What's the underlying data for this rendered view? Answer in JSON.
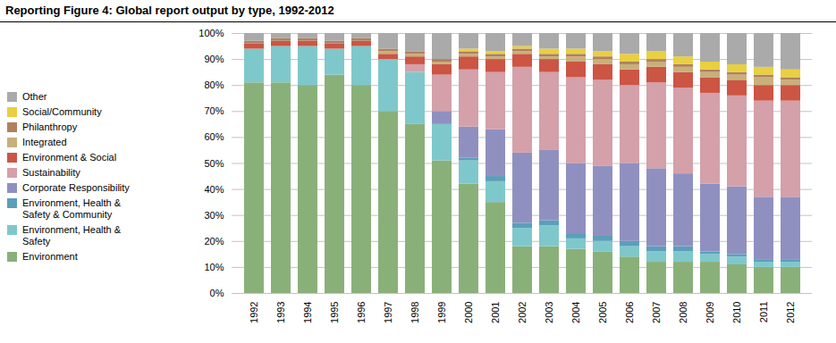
{
  "chart_data": {
    "type": "bar",
    "stacked": true,
    "title": "Reporting Figure 4: Global report output by type, 1992-2012",
    "categories": [
      "1992",
      "1993",
      "1994",
      "1995",
      "1996",
      "1997",
      "1998",
      "1999",
      "2000",
      "2001",
      "2002",
      "2003",
      "2004",
      "2005",
      "2006",
      "2007",
      "2008",
      "2009",
      "2010",
      "2011",
      "2012"
    ],
    "series": [
      {
        "name": "Environment",
        "color": "#8ab07a",
        "values": [
          81,
          81,
          80,
          84,
          80,
          70,
          65,
          51,
          42,
          35,
          18,
          18,
          17,
          16,
          14,
          12,
          12,
          12,
          11,
          10,
          10
        ]
      },
      {
        "name": "Environment, Health &\nSafety",
        "color": "#7ec8cc",
        "values": [
          13,
          14,
          15,
          10,
          15,
          20,
          20,
          14,
          9,
          8,
          7,
          8,
          4,
          4,
          4,
          4,
          4,
          3,
          3,
          2,
          2
        ]
      },
      {
        "name": "Environment, Health &\nSafety & Community",
        "color": "#5b9fba",
        "values": [
          0,
          0,
          0,
          0,
          0,
          0,
          0,
          0,
          1,
          2,
          2,
          2,
          2,
          2,
          2,
          2,
          2,
          1,
          1,
          1,
          1
        ]
      },
      {
        "name": "Corporate Responsibility",
        "color": "#9090c0",
        "values": [
          0,
          0,
          0,
          0,
          0,
          0,
          0,
          5,
          12,
          18,
          27,
          27,
          27,
          27,
          30,
          30,
          28,
          26,
          26,
          24,
          24
        ]
      },
      {
        "name": "Sustainability",
        "color": "#d4a0aa",
        "values": [
          0,
          0,
          0,
          0,
          0,
          0,
          3,
          14,
          22,
          22,
          33,
          30,
          33,
          33,
          30,
          33,
          33,
          35,
          35,
          37,
          37
        ]
      },
      {
        "name": "Environment & Social",
        "color": "#cc5544",
        "values": [
          2,
          2,
          2,
          2,
          2,
          2,
          3,
          4,
          5,
          5,
          5,
          5,
          6,
          6,
          6,
          6,
          6,
          6,
          6,
          6,
          6
        ]
      },
      {
        "name": "Integrated",
        "color": "#c8b07a",
        "values": [
          0,
          0,
          0,
          0,
          0,
          1,
          1,
          1,
          1,
          1,
          1,
          1,
          2,
          2,
          2,
          2,
          2,
          2,
          2,
          3,
          2
        ]
      },
      {
        "name": "Philanthropy",
        "color": "#b08060",
        "values": [
          1,
          1,
          1,
          1,
          1,
          1,
          1,
          1,
          1,
          1,
          1,
          1,
          1,
          1,
          1,
          1,
          1,
          1,
          1,
          1,
          1
        ]
      },
      {
        "name": "Social/Community",
        "color": "#e8d040",
        "values": [
          0,
          0,
          0,
          0,
          0,
          0,
          0,
          0,
          1,
          1,
          1,
          2,
          2,
          2,
          3,
          3,
          3,
          3,
          3,
          3,
          3
        ]
      },
      {
        "name": "Other",
        "color": "#aaaaaa",
        "values": [
          3,
          2,
          2,
          3,
          2,
          6,
          7,
          10,
          6,
          7,
          5,
          6,
          6,
          7,
          8,
          7,
          9,
          11,
          12,
          13,
          14
        ]
      }
    ],
    "ylim": [
      0,
      100
    ],
    "yticks": [
      {
        "value": 0,
        "label": "0%"
      },
      {
        "value": 10,
        "label": "10%"
      },
      {
        "value": 20,
        "label": "20%"
      },
      {
        "value": 30,
        "label": "30%"
      },
      {
        "value": 40,
        "label": "40%"
      },
      {
        "value": 50,
        "label": "50%"
      },
      {
        "value": 60,
        "label": "60%"
      },
      {
        "value": 70,
        "label": "70%"
      },
      {
        "value": 80,
        "label": "80%"
      },
      {
        "value": 90,
        "label": "90%"
      },
      {
        "value": 100,
        "label": "100%"
      }
    ],
    "grid": true,
    "legend": "left"
  }
}
